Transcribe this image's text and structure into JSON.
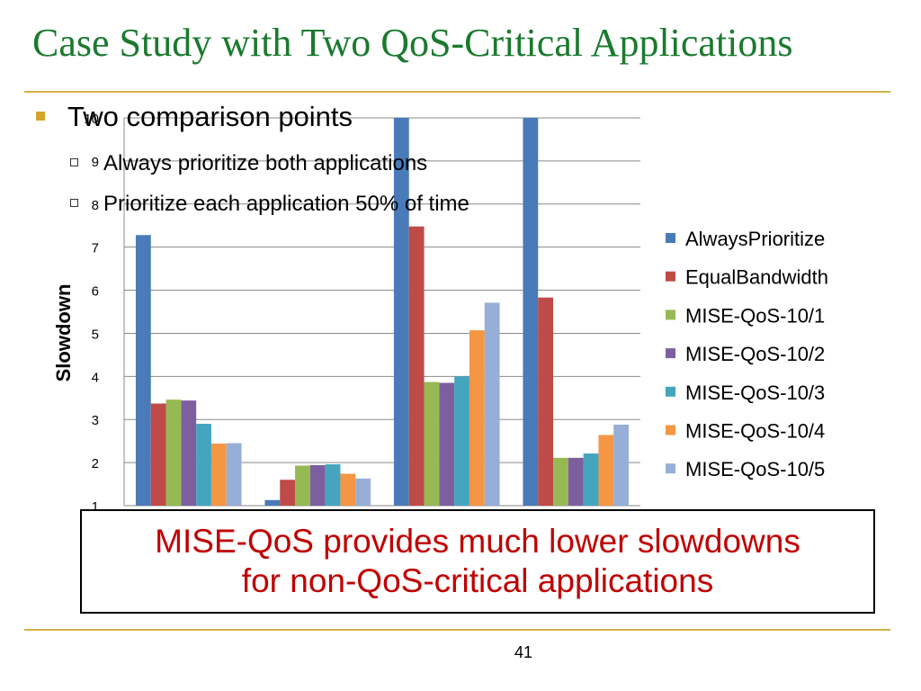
{
  "slide": {
    "title": "Case Study with Two QoS-Critical Applications",
    "bullet_main": "Two comparison points",
    "sub_bullets": [
      "Always prioritize both applications",
      "Prioritize each application 50% of time"
    ],
    "callout_lines": [
      "MISE-QoS provides much lower slowdowns",
      "for non-QoS-critical applications"
    ],
    "page_number": "41",
    "accent_color": "#d2b04a",
    "title_color": "#1a7a2e",
    "callout_color": "#c00000"
  },
  "chart_data": {
    "type": "bar",
    "ylabel": "Slowdown",
    "xlabel": "",
    "ylim": [
      1,
      10
    ],
    "yticks": [
      1,
      2,
      3,
      4,
      5,
      6,
      7,
      8,
      9,
      10
    ],
    "grid": true,
    "legend_position": "right",
    "categories": [
      "",
      "",
      "",
      ""
    ],
    "series": [
      {
        "name": "AlwaysPrioritize",
        "color": "#4a7ab8",
        "values": [
          7.28,
          1.13,
          10.0,
          10.0
        ]
      },
      {
        "name": "EqualBandwidth",
        "color": "#be4b48",
        "values": [
          3.37,
          1.6,
          7.48,
          5.83
        ]
      },
      {
        "name": "MISE-QoS-10/1",
        "color": "#97b954",
        "values": [
          3.46,
          1.93,
          3.87,
          2.11
        ]
      },
      {
        "name": "MISE-QoS-10/2",
        "color": "#7d5fa0",
        "values": [
          3.44,
          1.94,
          3.85,
          2.11
        ]
      },
      {
        "name": "MISE-QoS-10/3",
        "color": "#46a5be",
        "values": [
          2.9,
          1.96,
          4.0,
          2.21
        ]
      },
      {
        "name": "MISE-QoS-10/4",
        "color": "#f59644",
        "values": [
          2.44,
          1.74,
          5.07,
          2.64
        ]
      },
      {
        "name": "MISE-QoS-10/5",
        "color": "#97afd6",
        "values": [
          2.45,
          1.63,
          5.71,
          2.88
        ]
      }
    ]
  }
}
